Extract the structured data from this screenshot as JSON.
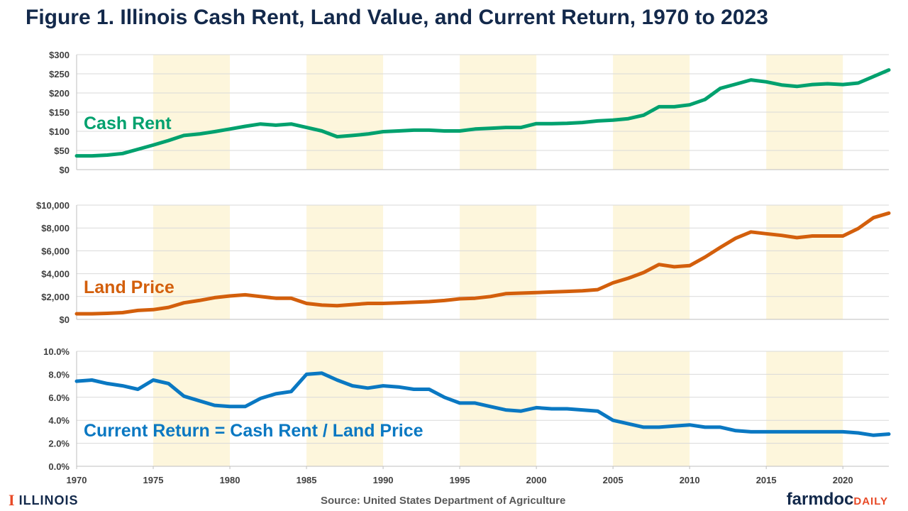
{
  "title": "Figure 1. Illinois Cash Rent, Land Value, and Current Return, 1970 to 2023",
  "footer": {
    "logo_text": "ILLINOIS",
    "source": "Source: United States Department of Agriculture",
    "brand_main": "farmdoc",
    "brand_sub": "DAILY"
  },
  "colors": {
    "cash_rent": "#00a16e",
    "land_price": "#d35f0c",
    "current_return": "#0a78c2",
    "shading": "#fdf6dc",
    "grid": "#d9d9d9",
    "title": "#13294b"
  },
  "chart_data": [
    {
      "type": "line",
      "label": "Cash Rent",
      "x_range": [
        1970,
        2023
      ],
      "ylim": [
        0,
        300
      ],
      "yticks": [
        0,
        50,
        100,
        150,
        200,
        250,
        300
      ],
      "ytick_labels": [
        "$0",
        "$50",
        "$100",
        "$150",
        "$200",
        "$250",
        "$300"
      ],
      "shaded_periods": [
        [
          1975,
          1980
        ],
        [
          1985,
          1990
        ],
        [
          1995,
          2000
        ],
        [
          2005,
          2010
        ],
        [
          2015,
          2020
        ]
      ],
      "x": [
        1970,
        1971,
        1972,
        1973,
        1974,
        1975,
        1976,
        1977,
        1978,
        1979,
        1980,
        1981,
        1982,
        1983,
        1984,
        1985,
        1986,
        1987,
        1988,
        1989,
        1990,
        1991,
        1992,
        1993,
        1994,
        1995,
        1996,
        1997,
        1998,
        1999,
        2000,
        2001,
        2002,
        2003,
        2004,
        2005,
        2006,
        2007,
        2008,
        2009,
        2010,
        2011,
        2012,
        2013,
        2014,
        2015,
        2016,
        2017,
        2018,
        2019,
        2020,
        2021,
        2022,
        2023
      ],
      "values": [
        36,
        36,
        38,
        42,
        53,
        64,
        76,
        89,
        93,
        99,
        106,
        113,
        119,
        116,
        119,
        110,
        101,
        86,
        89,
        93,
        99,
        101,
        103,
        103,
        101,
        101,
        106,
        108,
        110,
        110,
        120,
        120,
        121,
        123,
        127,
        129,
        133,
        142,
        164,
        164,
        169,
        183,
        212,
        223,
        234,
        229,
        221,
        217,
        222,
        224,
        222,
        226,
        243,
        260
      ]
    },
    {
      "type": "line",
      "label": "Land Price",
      "x_range": [
        1970,
        2023
      ],
      "ylim": [
        0,
        10000
      ],
      "yticks": [
        0,
        2000,
        4000,
        6000,
        8000,
        10000
      ],
      "ytick_labels": [
        "$0",
        "$2,000",
        "$4,000",
        "$6,000",
        "$8,000",
        "$10,000"
      ],
      "shaded_periods": [
        [
          1975,
          1980
        ],
        [
          1985,
          1990
        ],
        [
          1995,
          2000
        ],
        [
          2005,
          2010
        ],
        [
          2015,
          2020
        ]
      ],
      "x": [
        1970,
        1971,
        1972,
        1973,
        1974,
        1975,
        1976,
        1977,
        1978,
        1979,
        1980,
        1981,
        1982,
        1983,
        1984,
        1985,
        1986,
        1987,
        1988,
        1989,
        1990,
        1991,
        1992,
        1993,
        1994,
        1995,
        1996,
        1997,
        1998,
        1999,
        2000,
        2001,
        2002,
        2003,
        2004,
        2005,
        2006,
        2007,
        2008,
        2009,
        2010,
        2011,
        2012,
        2013,
        2014,
        2015,
        2016,
        2017,
        2018,
        2019,
        2020,
        2021,
        2022,
        2023
      ],
      "values": [
        490,
        490,
        530,
        590,
        780,
        850,
        1050,
        1450,
        1650,
        1900,
        2050,
        2150,
        2000,
        1850,
        1850,
        1400,
        1250,
        1200,
        1300,
        1400,
        1400,
        1450,
        1500,
        1550,
        1650,
        1800,
        1850,
        2000,
        2250,
        2300,
        2350,
        2400,
        2450,
        2500,
        2600,
        3200,
        3600,
        4100,
        4800,
        4600,
        4700,
        5450,
        6300,
        7100,
        7650,
        7500,
        7350,
        7150,
        7300,
        7300,
        7300,
        7950,
        8900,
        9300
      ]
    },
    {
      "type": "line",
      "label": "Current Return = Cash Rent / Land Price",
      "x_range": [
        1970,
        2023
      ],
      "ylim": [
        0,
        10
      ],
      "yticks": [
        0,
        2,
        4,
        6,
        8,
        10
      ],
      "ytick_labels": [
        "0.0%",
        "2.0%",
        "4.0%",
        "6.0%",
        "8.0%",
        "10.0%"
      ],
      "xticks": [
        1970,
        1975,
        1980,
        1985,
        1990,
        1995,
        2000,
        2005,
        2010,
        2015,
        2020
      ],
      "xtick_labels": [
        "1970",
        "1975",
        "1980",
        "1985",
        "1990",
        "1995",
        "2000",
        "2005",
        "2010",
        "2015",
        "2020"
      ],
      "shaded_periods": [
        [
          1975,
          1980
        ],
        [
          1985,
          1990
        ],
        [
          1995,
          2000
        ],
        [
          2005,
          2010
        ],
        [
          2015,
          2020
        ]
      ],
      "x": [
        1970,
        1971,
        1972,
        1973,
        1974,
        1975,
        1976,
        1977,
        1978,
        1979,
        1980,
        1981,
        1982,
        1983,
        1984,
        1985,
        1986,
        1987,
        1988,
        1989,
        1990,
        1991,
        1992,
        1993,
        1994,
        1995,
        1996,
        1997,
        1998,
        1999,
        2000,
        2001,
        2002,
        2003,
        2004,
        2005,
        2006,
        2007,
        2008,
        2009,
        2010,
        2011,
        2012,
        2013,
        2014,
        2015,
        2016,
        2017,
        2018,
        2019,
        2020,
        2021,
        2022,
        2023
      ],
      "values": [
        7.4,
        7.5,
        7.2,
        7.0,
        6.7,
        7.5,
        7.2,
        6.1,
        5.7,
        5.3,
        5.2,
        5.2,
        5.9,
        6.3,
        6.5,
        8.0,
        8.1,
        7.5,
        7.0,
        6.8,
        7.0,
        6.9,
        6.7,
        6.7,
        6.0,
        5.5,
        5.5,
        5.2,
        4.9,
        4.8,
        5.1,
        5.0,
        5.0,
        4.9,
        4.8,
        4.0,
        3.7,
        3.4,
        3.4,
        3.5,
        3.6,
        3.4,
        3.4,
        3.1,
        3.0,
        3.0,
        3.0,
        3.0,
        3.0,
        3.0,
        3.0,
        2.9,
        2.7,
        2.8
      ]
    }
  ]
}
